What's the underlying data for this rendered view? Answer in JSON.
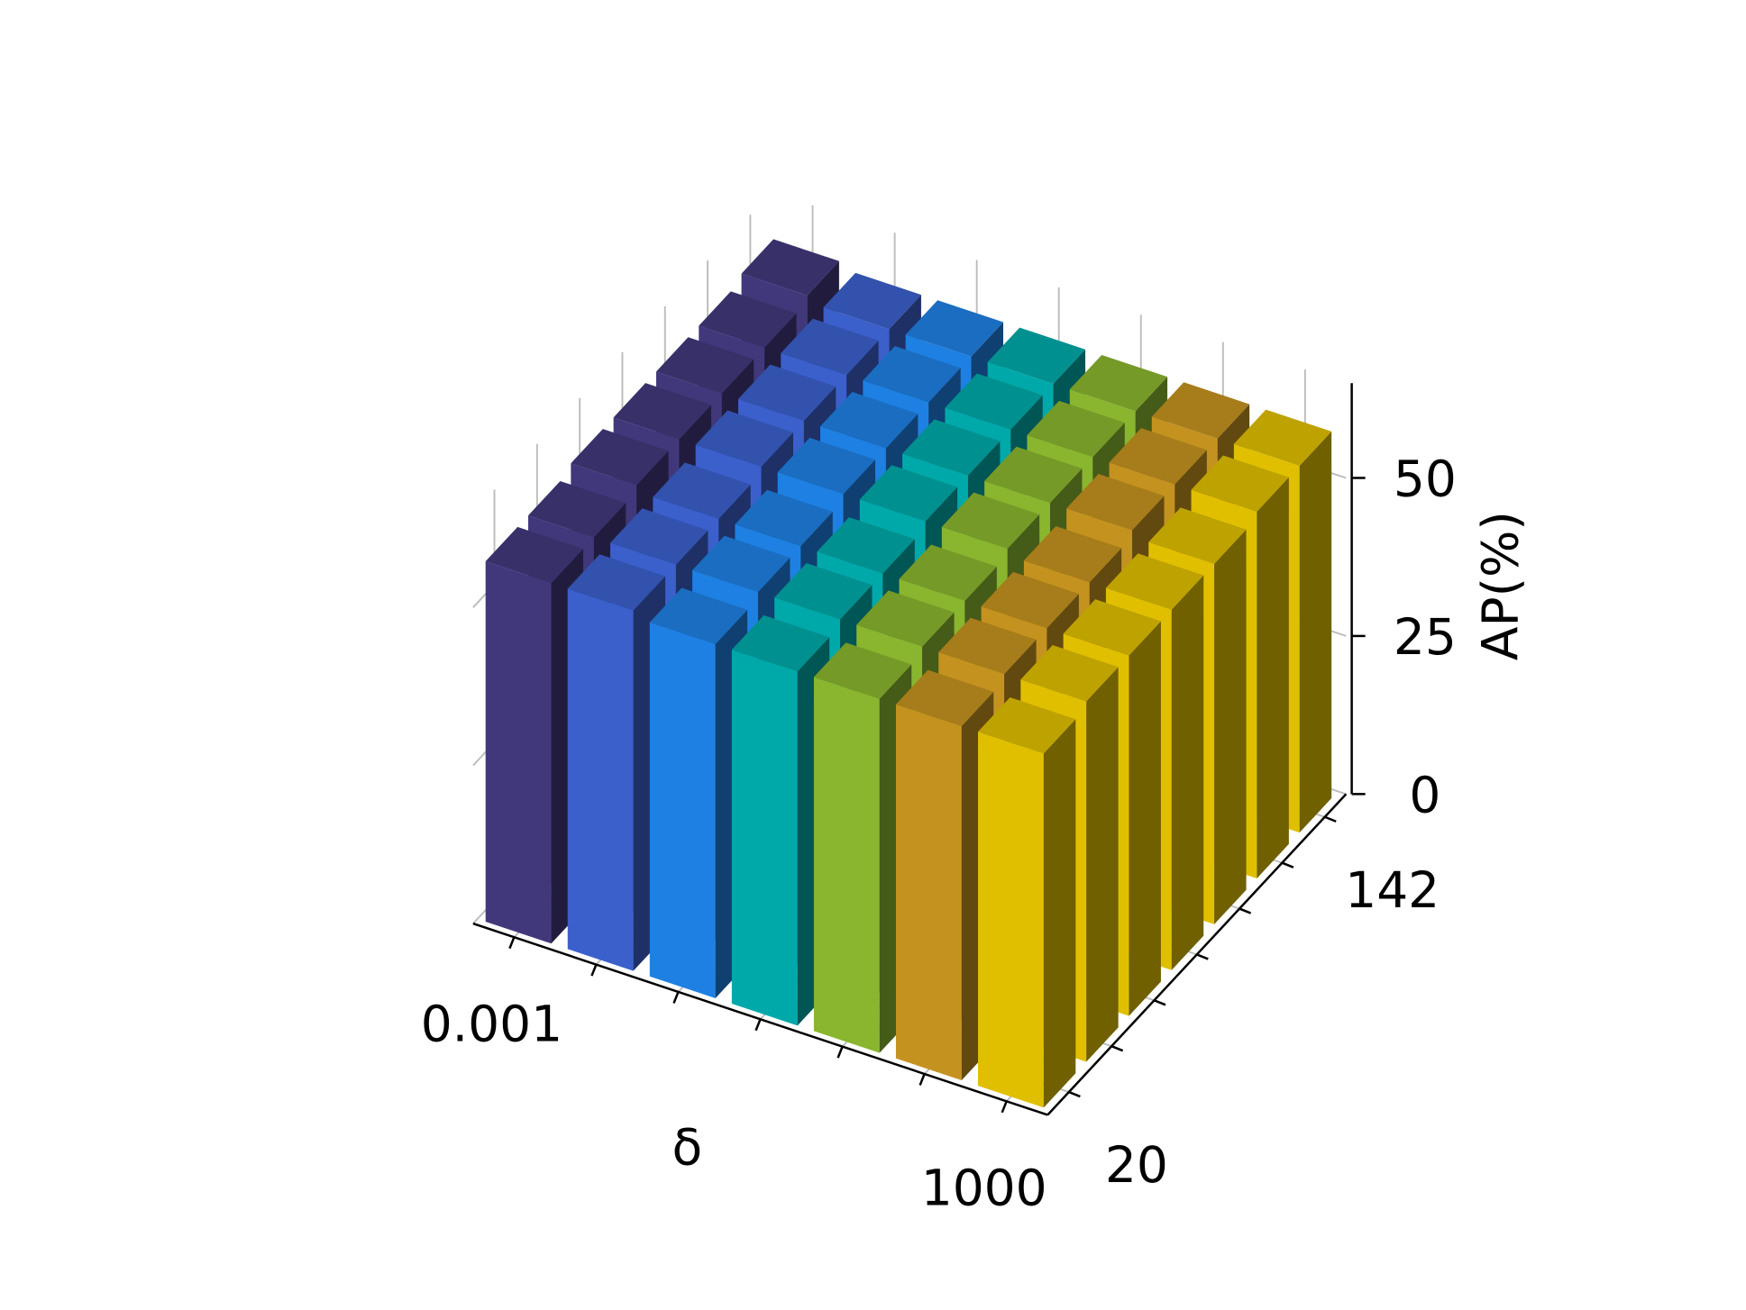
{
  "chart_data": {
    "type": "bar3d",
    "xlabel": "δ",
    "zlabel": "AP(%)",
    "categories": [
      "0.001",
      null,
      null,
      null,
      null,
      null,
      "1000"
    ],
    "depth_categories": [
      "20",
      null,
      null,
      null,
      null,
      null,
      "142"
    ],
    "colors": [
      "#41387c",
      "#3b60cc",
      "#1e80e2",
      "#00a9a9",
      "#8ab52f",
      "#c4921f",
      "#e0bf00"
    ],
    "values": [
      [
        57,
        57,
        56,
        56,
        56,
        56,
        56
      ],
      [
        57,
        57,
        57,
        57,
        57,
        57,
        57
      ],
      [
        58,
        57,
        57,
        57,
        57,
        57,
        57
      ],
      [
        58,
        58,
        58,
        58,
        58,
        57,
        57
      ],
      [
        58,
        58,
        58,
        58,
        58,
        58,
        57
      ],
      [
        58,
        58,
        58,
        58,
        58,
        58,
        58
      ],
      [
        59,
        58,
        58,
        58,
        58,
        58,
        58
      ]
    ],
    "zlim": [
      0,
      65
    ],
    "zticks": [
      0,
      25,
      50
    ],
    "grid": true
  }
}
